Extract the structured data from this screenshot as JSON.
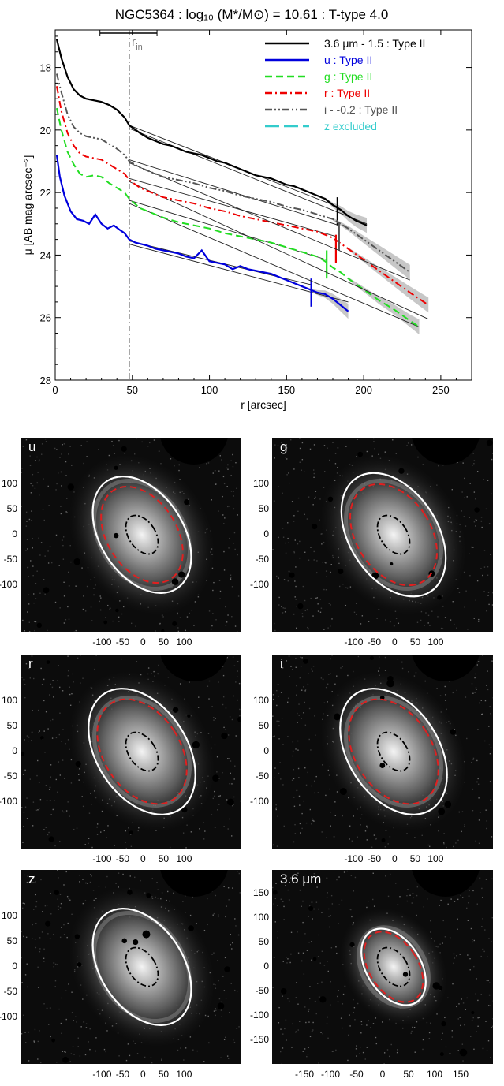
{
  "chart_data": {
    "type": "line",
    "title": "NGC5364 : log₁₀ (M*/M⊙) = 10.61 : T-type 4.0",
    "xlabel": "r [arcsec]",
    "ylabel": "μ [AB mag arcsec⁻²]",
    "xlim": [
      0,
      270
    ],
    "ylim": [
      28,
      16.8
    ],
    "y_inverted": true,
    "x_ticks": [
      0,
      50,
      100,
      150,
      200,
      250
    ],
    "x_tick_labels": [
      "0",
      "50",
      "100",
      "150",
      "200",
      "250"
    ],
    "y_ticks": [
      18,
      20,
      22,
      24,
      26,
      28
    ],
    "y_tick_labels": [
      "18",
      "20",
      "22",
      "24",
      "26",
      "28"
    ],
    "rin_label": "r",
    "rin_sub": "in",
    "r_in": 48,
    "r_in_bar": [
      29,
      66
    ],
    "legend_position": "top-right",
    "series": [
      {
        "name": "3.6 μm - 1.5 : Type II",
        "color": "#000000",
        "style": "solid",
        "x": [
          1,
          4,
          8,
          12,
          16,
          20,
          25,
          30,
          35,
          40,
          45,
          48,
          55,
          60,
          65,
          70,
          75,
          80,
          85,
          90,
          95,
          100,
          105,
          110,
          115,
          120,
          125,
          130,
          135,
          140,
          145,
          150,
          155,
          160,
          165,
          170,
          175,
          180,
          185,
          190,
          195,
          202
        ],
        "y": [
          17.1,
          17.7,
          18.3,
          18.7,
          18.9,
          19.0,
          19.05,
          19.1,
          19.2,
          19.35,
          19.6,
          19.85,
          20.1,
          20.25,
          20.35,
          20.45,
          20.5,
          20.6,
          20.7,
          20.75,
          20.8,
          20.9,
          21.0,
          21.05,
          21.15,
          21.25,
          21.35,
          21.45,
          21.5,
          21.55,
          21.65,
          21.75,
          21.8,
          21.9,
          22.0,
          22.1,
          22.2,
          22.4,
          22.55,
          22.75,
          22.9,
          23.05
        ],
        "break_r": 183,
        "break_mu": 22.6,
        "fit": [
          [
            48,
            19.85,
            183,
            22.45
          ],
          [
            48,
            19.95,
            202,
            23.0
          ]
        ]
      },
      {
        "name": "u : Type II",
        "color": "#0000dd",
        "style": "solid",
        "x": [
          1,
          3,
          6,
          10,
          14,
          18,
          22,
          26,
          30,
          34,
          38,
          42,
          45,
          48,
          52,
          56,
          60,
          65,
          70,
          75,
          80,
          85,
          90,
          95,
          100,
          105,
          110,
          115,
          120,
          125,
          130,
          135,
          140,
          145,
          150,
          155,
          160,
          165,
          170,
          175,
          180,
          185,
          190
        ],
        "y": [
          20.8,
          21.5,
          22.1,
          22.6,
          22.85,
          22.9,
          23.0,
          22.7,
          23.0,
          23.15,
          23.05,
          23.2,
          23.3,
          23.5,
          23.6,
          23.65,
          23.7,
          23.8,
          23.85,
          23.9,
          23.95,
          24.05,
          24.1,
          23.85,
          24.2,
          24.25,
          24.3,
          24.45,
          24.35,
          24.45,
          24.5,
          24.55,
          24.6,
          24.7,
          24.8,
          24.9,
          25.0,
          25.1,
          25.2,
          25.25,
          25.4,
          25.6,
          25.8
        ],
        "break_r": 166,
        "break_mu": 25.2,
        "fit": [
          [
            48,
            23.55,
            166,
            24.95
          ],
          [
            48,
            23.65,
            190,
            25.5
          ]
        ]
      },
      {
        "name": "g : Type II",
        "color": "#22dd22",
        "style": "dashed",
        "x": [
          1,
          4,
          8,
          12,
          16,
          20,
          25,
          30,
          35,
          40,
          45,
          48,
          55,
          60,
          70,
          80,
          90,
          100,
          110,
          120,
          130,
          140,
          150,
          160,
          170,
          175,
          180,
          185,
          190,
          200,
          210,
          220,
          230,
          236
        ],
        "y": [
          19.3,
          20.0,
          20.7,
          21.1,
          21.4,
          21.5,
          21.45,
          21.5,
          21.7,
          21.85,
          22.0,
          22.2,
          22.5,
          22.6,
          22.8,
          22.95,
          23.05,
          23.15,
          23.3,
          23.4,
          23.5,
          23.6,
          23.75,
          23.9,
          24.05,
          24.2,
          24.4,
          24.55,
          24.75,
          25.1,
          25.45,
          25.75,
          26.1,
          26.3
        ],
        "break_r": 176,
        "break_mu": 24.3,
        "fit": [
          [
            48,
            22.25,
            176,
            24.15
          ],
          [
            48,
            22.35,
            236,
            26.3
          ]
        ]
      },
      {
        "name": "r : Type II",
        "color": "#ee0000",
        "style": "dashdot",
        "x": [
          1,
          4,
          8,
          12,
          16,
          20,
          25,
          30,
          35,
          40,
          45,
          48,
          55,
          60,
          70,
          80,
          90,
          100,
          110,
          120,
          130,
          140,
          150,
          160,
          170,
          180,
          190,
          200,
          210,
          220,
          230,
          242
        ],
        "y": [
          18.6,
          19.4,
          20.1,
          20.5,
          20.75,
          20.85,
          20.9,
          20.95,
          21.1,
          21.25,
          21.4,
          21.6,
          21.85,
          21.95,
          22.15,
          22.25,
          22.35,
          22.5,
          22.6,
          22.75,
          22.85,
          22.95,
          23.05,
          23.15,
          23.25,
          23.45,
          23.8,
          24.15,
          24.5,
          24.85,
          25.2,
          25.6
        ],
        "break_r": 182,
        "break_mu": 23.8,
        "fit": [
          [
            48,
            21.55,
            182,
            23.4
          ],
          [
            48,
            21.65,
            242,
            26.05
          ]
        ]
      },
      {
        "name": "i - -0.2 : Type II",
        "color": "#555555",
        "style": "dashdotdot",
        "x": [
          1,
          4,
          8,
          12,
          16,
          20,
          25,
          30,
          35,
          40,
          45,
          48,
          55,
          60,
          70,
          80,
          90,
          100,
          110,
          120,
          130,
          140,
          150,
          160,
          170,
          180,
          190,
          200,
          210,
          220,
          230
        ],
        "y": [
          18.2,
          18.8,
          19.5,
          19.9,
          20.1,
          20.2,
          20.25,
          20.3,
          20.45,
          20.6,
          20.8,
          21.0,
          21.2,
          21.3,
          21.5,
          21.6,
          21.7,
          21.85,
          21.95,
          22.1,
          22.2,
          22.3,
          22.45,
          22.55,
          22.7,
          22.85,
          23.15,
          23.5,
          23.85,
          24.2,
          24.55
        ],
        "break_r": 184,
        "break_mu": 23.4,
        "fit": [
          [
            48,
            20.95,
            184,
            23.05
          ],
          [
            48,
            21.05,
            230,
            24.8
          ]
        ]
      },
      {
        "name": "z excluded",
        "color": "#33cccc",
        "style": "longdash",
        "x": [],
        "y": [],
        "fit": []
      }
    ]
  },
  "images": {
    "panels": [
      {
        "label": "u",
        "white_axes": [
          1.65,
          2.55
        ],
        "red_axes": [
          1.38,
          2.1
        ],
        "y_labels": [
          "100",
          "50",
          "0",
          "-50",
          "-100"
        ],
        "x_labels": [
          "-100",
          "-50",
          "0",
          "50",
          "100"
        ]
      },
      {
        "label": "g",
        "white_axes": [
          1.75,
          2.7
        ],
        "red_axes": [
          1.48,
          2.2
        ],
        "y_labels": [
          "100",
          "50",
          "0",
          "-50",
          "-100"
        ],
        "x_labels": [
          "-100",
          "-50",
          "0",
          "50",
          "100"
        ]
      },
      {
        "label": "r",
        "white_axes": [
          1.8,
          2.75
        ],
        "red_axes": [
          1.52,
          2.28
        ],
        "y_labels": [
          "100",
          "50",
          "0",
          "-50",
          "-100"
        ],
        "x_labels": [
          "-100",
          "-50",
          "0",
          "50",
          "100"
        ]
      },
      {
        "label": "i",
        "white_axes": [
          1.8,
          2.75
        ],
        "red_axes": [
          1.52,
          2.28
        ],
        "y_labels": [
          "100",
          "50",
          "0",
          "-50",
          "-100"
        ],
        "x_labels": [
          "-100",
          "-50",
          "0",
          "50",
          "100"
        ]
      },
      {
        "label": "z",
        "white_axes": [
          1.65,
          2.55
        ],
        "red_axes": null,
        "y_labels": [
          "100",
          "50",
          "0",
          "-50",
          "-100"
        ],
        "x_labels": [
          "-100",
          "-50",
          "0",
          "50",
          "100"
        ]
      },
      {
        "label": "3.6 μm",
        "white_axes": [
          1.42,
          2.22
        ],
        "red_axes": [
          1.28,
          2.05
        ],
        "y_labels": [
          "150",
          "100",
          "50",
          "0",
          "-50",
          "-100",
          "-150"
        ],
        "x_labels": [
          "-150",
          "-100",
          "-50",
          "0",
          "50",
          "100",
          "150"
        ]
      }
    ]
  }
}
